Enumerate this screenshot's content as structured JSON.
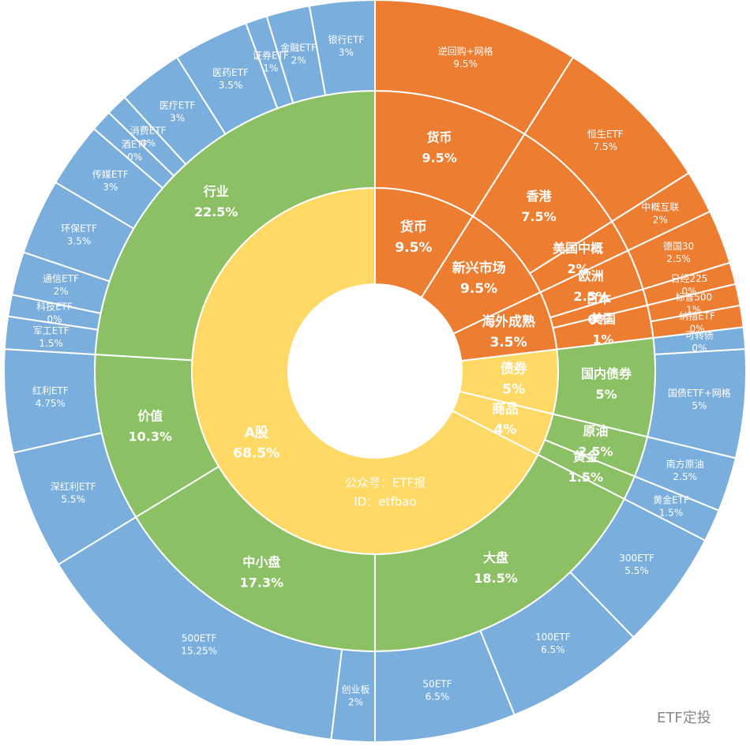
{
  "chart_data": {
    "type": "sunburst",
    "annotations": [
      "公众号：ETF报",
      "ID：etfbao",
      "ETF定投"
    ],
    "nodes": [
      {
        "label": "货币",
        "value": 9.5,
        "value_label": "9.5%",
        "color": "#ed7d31",
        "children": [
          {
            "label": "货币",
            "value": 9.5,
            "value_label": "9.5%",
            "color": "#ed7d31",
            "children": [
              {
                "label": "逆回购+网格",
                "value": 9.5,
                "value_label": "9.5%",
                "color": "#ed7d31"
              }
            ]
          }
        ]
      },
      {
        "label": "新兴市场",
        "value": 9.5,
        "value_label": "9.5%",
        "color": "#ed7d31",
        "children": [
          {
            "label": "香港",
            "value": 7.5,
            "value_label": "7.5%",
            "color": "#ed7d31",
            "children": [
              {
                "label": "恒生ETF",
                "value": 7.5,
                "value_label": "7.5%",
                "color": "#ed7d31"
              }
            ]
          },
          {
            "label": "美国中概",
            "value": 2,
            "value_label": "2%",
            "color": "#ed7d31",
            "children": [
              {
                "label": "中概互联",
                "value": 2,
                "value_label": "2%",
                "color": "#ed7d31"
              }
            ]
          }
        ]
      },
      {
        "label": "海外成熟",
        "value": 3.5,
        "value_label": "3.5%",
        "color": "#ed7d31",
        "children": [
          {
            "label": "欧洲",
            "value": 2.5,
            "value_label": "2.5%",
            "color": "#ed7d31",
            "children": [
              {
                "label": "德国30",
                "value": 2.5,
                "value_label": "2.5%",
                "color": "#ed7d31"
              }
            ]
          },
          {
            "label": "日本",
            "value": 0,
            "value_label": "0%",
            "color": "#ed7d31",
            "children": [
              {
                "label": "日经225",
                "value": 0,
                "value_label": "0%",
                "color": "#ed7d31"
              }
            ]
          },
          {
            "label": "美国",
            "value": 1,
            "value_label": "1%",
            "color": "#ed7d31",
            "children": [
              {
                "label": "标普500",
                "value": 1,
                "value_label": "1%",
                "color": "#ed7d31"
              },
              {
                "label": "纳指ETF",
                "value": 0,
                "value_label": "0%",
                "color": "#ed7d31"
              }
            ]
          }
        ]
      },
      {
        "label": "债券",
        "value": 5,
        "value_label": "5%",
        "color": "#ffd966",
        "children": [
          {
            "label": "国内债券",
            "value": 5,
            "value_label": "5%",
            "color": "#8cc064",
            "children": [
              {
                "label": "可转债",
                "value": 0,
                "value_label": "0%",
                "color": "#7aaedc"
              },
              {
                "label": "国债ETF+网格",
                "value": 5,
                "value_label": "5%",
                "color": "#7aaedc"
              }
            ]
          }
        ]
      },
      {
        "label": "商品",
        "value": 4,
        "value_label": "4%",
        "color": "#ffd966",
        "children": [
          {
            "label": "原油",
            "value": 2.5,
            "value_label": "2.5%",
            "color": "#8cc064",
            "children": [
              {
                "label": "南方原油",
                "value": 2.5,
                "value_label": "2.5%",
                "color": "#7aaedc"
              }
            ]
          },
          {
            "label": "黄金",
            "value": 1.5,
            "value_label": "1.5%",
            "color": "#8cc064",
            "children": [
              {
                "label": "黄金ETF",
                "value": 1.5,
                "value_label": "1.5%",
                "color": "#7aaedc"
              }
            ]
          }
        ]
      },
      {
        "label": "A股",
        "value": 68.5,
        "value_label": "68.5%",
        "color": "#ffd966",
        "children": [
          {
            "label": "大盘",
            "value": 18.5,
            "value_label": "18.5%",
            "color": "#8cc064",
            "children": [
              {
                "label": "300ETF",
                "value": 5.5,
                "value_label": "5.5%",
                "color": "#7aaedc"
              },
              {
                "label": "100ETF",
                "value": 6.5,
                "value_label": "6.5%",
                "color": "#7aaedc"
              },
              {
                "label": "50ETF",
                "value": 6.5,
                "value_label": "6.5%",
                "color": "#7aaedc"
              }
            ]
          },
          {
            "label": "中小盘",
            "value": 17.3,
            "value_label": "17.3%",
            "color": "#8cc064",
            "children": [
              {
                "label": "创业板",
                "value": 2,
                "value_label": "2%",
                "color": "#7aaedc"
              },
              {
                "label": "500ETF",
                "value": 15.25,
                "value_label": "15.25%",
                "color": "#7aaedc"
              }
            ]
          },
          {
            "label": "价值",
            "value": 10.3,
            "value_label": "10.3%",
            "color": "#8cc064",
            "children": [
              {
                "label": "深红利ETF",
                "value": 5.5,
                "value_label": "5.5%",
                "color": "#7aaedc"
              },
              {
                "label": "红利ETF",
                "value": 4.75,
                "value_label": "4.75%",
                "color": "#7aaedc"
              }
            ]
          },
          {
            "label": "行业",
            "value": 22.5,
            "value_label": "22.5%",
            "color": "#8cc064",
            "children": [
              {
                "label": "军工ETF",
                "value": 1.5,
                "value_label": "1.5%",
                "color": "#7aaedc"
              },
              {
                "label": "科技ETF",
                "value": 0,
                "value_label": "0%",
                "color": "#7aaedc"
              },
              {
                "label": "通信ETF",
                "value": 2,
                "value_label": "2%",
                "color": "#7aaedc"
              },
              {
                "label": "环保ETF",
                "value": 3.5,
                "value_label": "3.5%",
                "color": "#7aaedc"
              },
              {
                "label": "传媒ETF",
                "value": 3,
                "value_label": "3%",
                "color": "#7aaedc"
              },
              {
                "label": "酒ETF",
                "value": 0,
                "value_label": "0%",
                "color": "#7aaedc"
              },
              {
                "label": "消费ETF",
                "value": 0,
                "value_label": "0%",
                "color": "#7aaedc"
              },
              {
                "label": "医疗ETF",
                "value": 3,
                "value_label": "3%",
                "color": "#7aaedc"
              },
              {
                "label": "医药ETF",
                "value": 3.5,
                "value_label": "3.5%",
                "color": "#7aaedc"
              },
              {
                "label": "证券ETF",
                "value": 1,
                "value_label": "1%",
                "color": "#7aaedc"
              },
              {
                "label": "金融ETF",
                "value": 2,
                "value_label": "2%",
                "color": "#7aaedc"
              },
              {
                "label": "银行ETF",
                "value": 3,
                "value_label": "3%",
                "color": "#7aaedc"
              }
            ]
          }
        ]
      }
    ]
  }
}
